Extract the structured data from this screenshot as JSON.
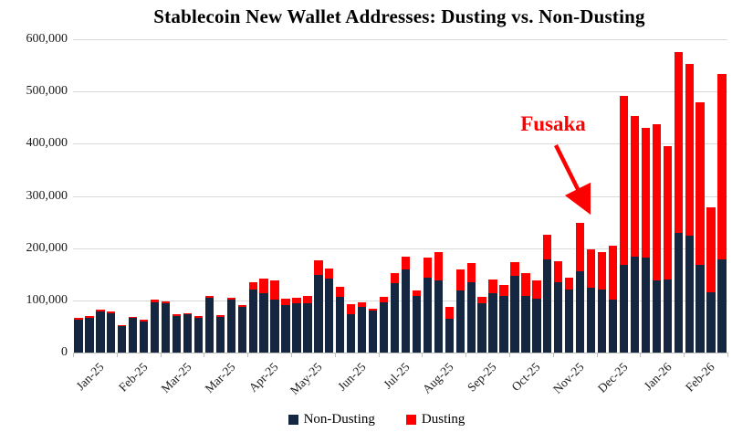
{
  "title": "Stablecoin New Wallet Addresses: Dusting vs. Non-Dusting",
  "annotation": {
    "label": "Fusaka",
    "color": "#ff0000",
    "target_bar_index": 46
  },
  "legend": [
    {
      "label": "Non-Dusting",
      "color": "#152640"
    },
    {
      "label": "Dusting",
      "color": "#fe0000"
    }
  ],
  "y_axis": {
    "tick_labels": [
      "0",
      "100,000",
      "200,000",
      "300,000",
      "400,000",
      "500,000",
      "600,000"
    ]
  },
  "chart_data": {
    "type": "bar",
    "stacked": true,
    "title": "Stablecoin New Wallet Addresses: Dusting vs. Non-Dusting",
    "xlabel": "",
    "ylabel": "",
    "ylim": [
      0,
      600000
    ],
    "grid": "horizontal",
    "legend_position": "bottom",
    "x_tick_labels": [
      "Jan-25",
      "Feb-25",
      "Mar-25",
      "Mar-25",
      "Apr-25",
      "May-25",
      "Jun-25",
      "Jul-25",
      "Aug-25",
      "Sep-25",
      "Oct-25",
      "Nov-25",
      "Dec-25",
      "Jan-26",
      "Feb-26"
    ],
    "x_tick_every_n_bars": 4,
    "bars_per_label_group": 4,
    "series": [
      {
        "name": "Non-Dusting",
        "color": "#152640",
        "values": [
          63000,
          66000,
          79000,
          75000,
          50000,
          66000,
          60000,
          97000,
          95000,
          70000,
          73000,
          67000,
          105000,
          68000,
          102000,
          88000,
          120000,
          113000,
          101000,
          91000,
          94000,
          95000,
          149000,
          142000,
          106000,
          74000,
          88000,
          80000,
          97000,
          133000,
          159000,
          109000,
          143000,
          139000,
          65000,
          119000,
          135000,
          95000,
          114000,
          109000,
          147000,
          108000,
          103000,
          179000,
          135000,
          121000,
          156000,
          124000,
          121000,
          101000,
          168000,
          183000,
          182000,
          138000,
          140000,
          229000,
          224000,
          168000,
          115000,
          179000
        ]
      },
      {
        "name": "Dusting",
        "color": "#fe0000",
        "values": [
          3000,
          4000,
          4000,
          4000,
          3000,
          3000,
          3000,
          4000,
          3000,
          3000,
          3000,
          3000,
          4000,
          3000,
          3000,
          3000,
          15000,
          29000,
          37000,
          13000,
          11000,
          13000,
          28000,
          19000,
          20000,
          19000,
          9000,
          4000,
          10000,
          20000,
          25000,
          10000,
          39000,
          53000,
          22000,
          40000,
          37000,
          11000,
          26000,
          20000,
          27000,
          45000,
          35000,
          47000,
          40000,
          22000,
          92000,
          74000,
          71000,
          104000,
          323000,
          270000,
          248000,
          300000,
          256000,
          346000,
          328000,
          312000,
          164000,
          354000
        ]
      }
    ]
  }
}
